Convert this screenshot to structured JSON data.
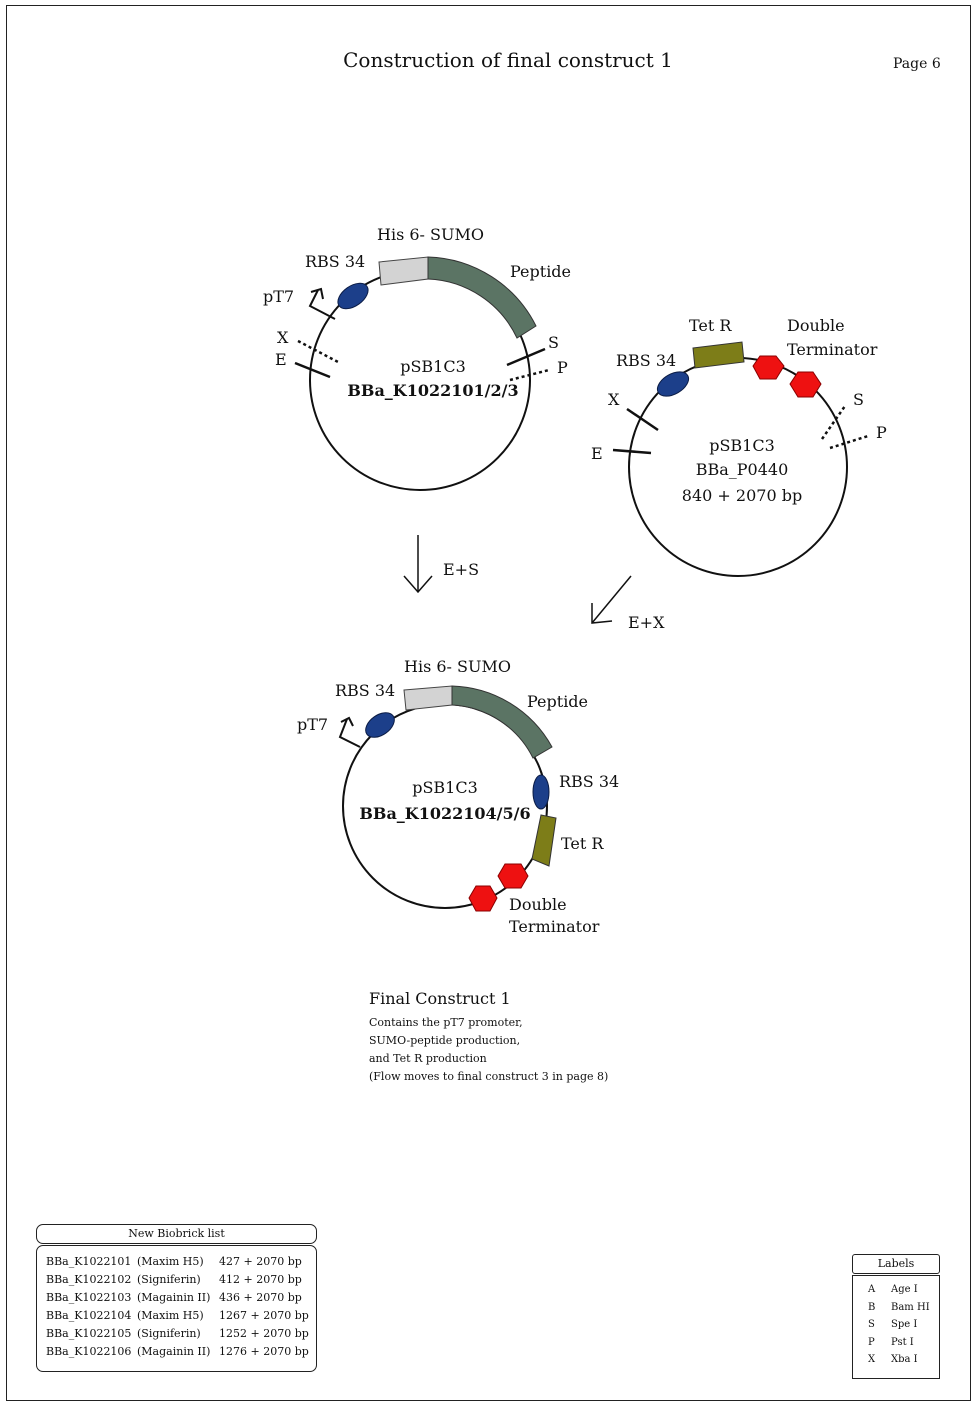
{
  "page": {
    "title": "Construction of final construct 1",
    "page_number": "Page 6"
  },
  "colors": {
    "rbs": "#1c3f8a",
    "his_sumo": "#d3d3d3",
    "peptide": "#5b7464",
    "tet_r": "#7d7d18",
    "terminator": "#ee1111"
  },
  "plasmid1": {
    "labels": {
      "his_sumo": "His 6- SUMO",
      "rbs": "RBS 34",
      "peptide": "Peptide",
      "promoter": "pT7",
      "x": "X",
      "e": "E",
      "s": "S",
      "p": "P"
    },
    "backbone": "pSB1C3",
    "name": "BBa_K1022101/2/3"
  },
  "plasmid2": {
    "labels": {
      "tet_r": "Tet R",
      "rbs": "RBS 34",
      "double": "Double",
      "terminator": "Terminator",
      "x": "X",
      "e": "E",
      "s": "S",
      "p": "P"
    },
    "backbone": "pSB1C3",
    "name": "BBa_P0440",
    "size": "840 + 2070 bp"
  },
  "arrows": {
    "digest1": "E+S",
    "digest2": "E+X"
  },
  "plasmid3": {
    "labels": {
      "his_sumo": "His 6- SUMO",
      "rbs": "RBS 34",
      "peptide": "Peptide",
      "promoter": "pT7",
      "rbs2": "RBS 34",
      "tet_r": "Tet R",
      "double": "Double",
      "terminator": "Terminator"
    },
    "backbone": "pSB1C3",
    "name": "BBa_K1022104/5/6"
  },
  "final_construct": {
    "title": "Final Construct 1",
    "notes": [
      "Contains the pT7 promoter,",
      "SUMO-peptide production,",
      "and Tet R production",
      "(Flow moves to final construct 3 in page 8)"
    ]
  },
  "biobrick_list": {
    "header": "New Biobrick list",
    "rows": [
      {
        "id": "BBa_K1022101",
        "name": "(Maxim H5)",
        "size": "427 + 2070 bp"
      },
      {
        "id": "BBa_K1022102",
        "name": "(Signiferin)",
        "size": "412 + 2070 bp"
      },
      {
        "id": "BBa_K1022103",
        "name": "(Magainin II)",
        "size": "436 + 2070 bp"
      },
      {
        "id": "BBa_K1022104",
        "name": "(Maxim H5)",
        "size": "1267 + 2070 bp"
      },
      {
        "id": "BBa_K1022105",
        "name": "(Signiferin)",
        "size": "1252 + 2070 bp"
      },
      {
        "id": "BBa_K1022106",
        "name": "(Magainin II)",
        "size": "1276 + 2070 bp"
      }
    ]
  },
  "labels_legend": {
    "header": "Labels",
    "rows": [
      {
        "key": "A",
        "value": "Age I"
      },
      {
        "key": "B",
        "value": "Bam HI"
      },
      {
        "key": "S",
        "value": "Spe I"
      },
      {
        "key": "P",
        "value": "Pst I"
      },
      {
        "key": "X",
        "value": "Xba I"
      }
    ]
  }
}
